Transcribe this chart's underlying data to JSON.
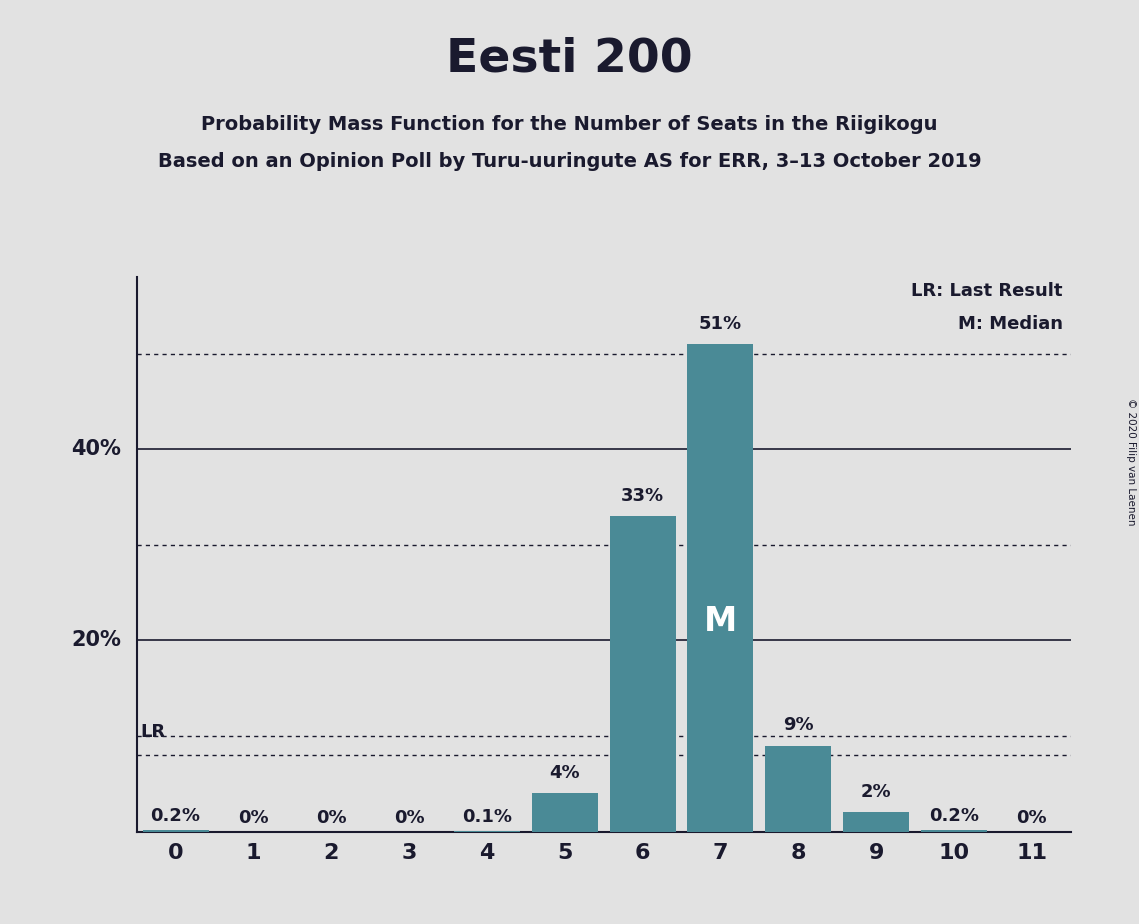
{
  "title": "Eesti 200",
  "subtitle1": "Probability Mass Function for the Number of Seats in the Riigikogu",
  "subtitle2": "Based on an Opinion Poll by Turu-uuringute AS for ERR, 3–13 October 2019",
  "copyright": "© 2020 Filip van Laenen",
  "categories": [
    0,
    1,
    2,
    3,
    4,
    5,
    6,
    7,
    8,
    9,
    10,
    11
  ],
  "values": [
    0.2,
    0.0,
    0.0,
    0.0,
    0.1,
    4.0,
    33.0,
    51.0,
    9.0,
    2.0,
    0.2,
    0.0
  ],
  "bar_color": "#4a8a96",
  "background_color": "#e2e2e2",
  "plot_bg_color": "#e2e2e2",
  "label_color": "#1a1a2e",
  "ylim": [
    0,
    58
  ],
  "xlim": [
    -0.5,
    11.5
  ],
  "bar_labels": [
    "0.2%",
    "0%",
    "0%",
    "0%",
    "0.1%",
    "4%",
    "33%",
    "51%",
    "9%",
    "2%",
    "0.2%",
    "0%"
  ],
  "median_bar_idx": 7,
  "median_label": "M",
  "lr_line_y": 8.0,
  "lr_label": "LR",
  "dotted_lines": [
    10,
    30,
    50,
    8
  ],
  "solid_lines": [
    20,
    40
  ],
  "ytick_labels": [
    "20%",
    "40%"
  ],
  "ytick_vals": [
    20,
    40
  ],
  "legend_lr": "LR: Last Result",
  "legend_m": "M: Median"
}
